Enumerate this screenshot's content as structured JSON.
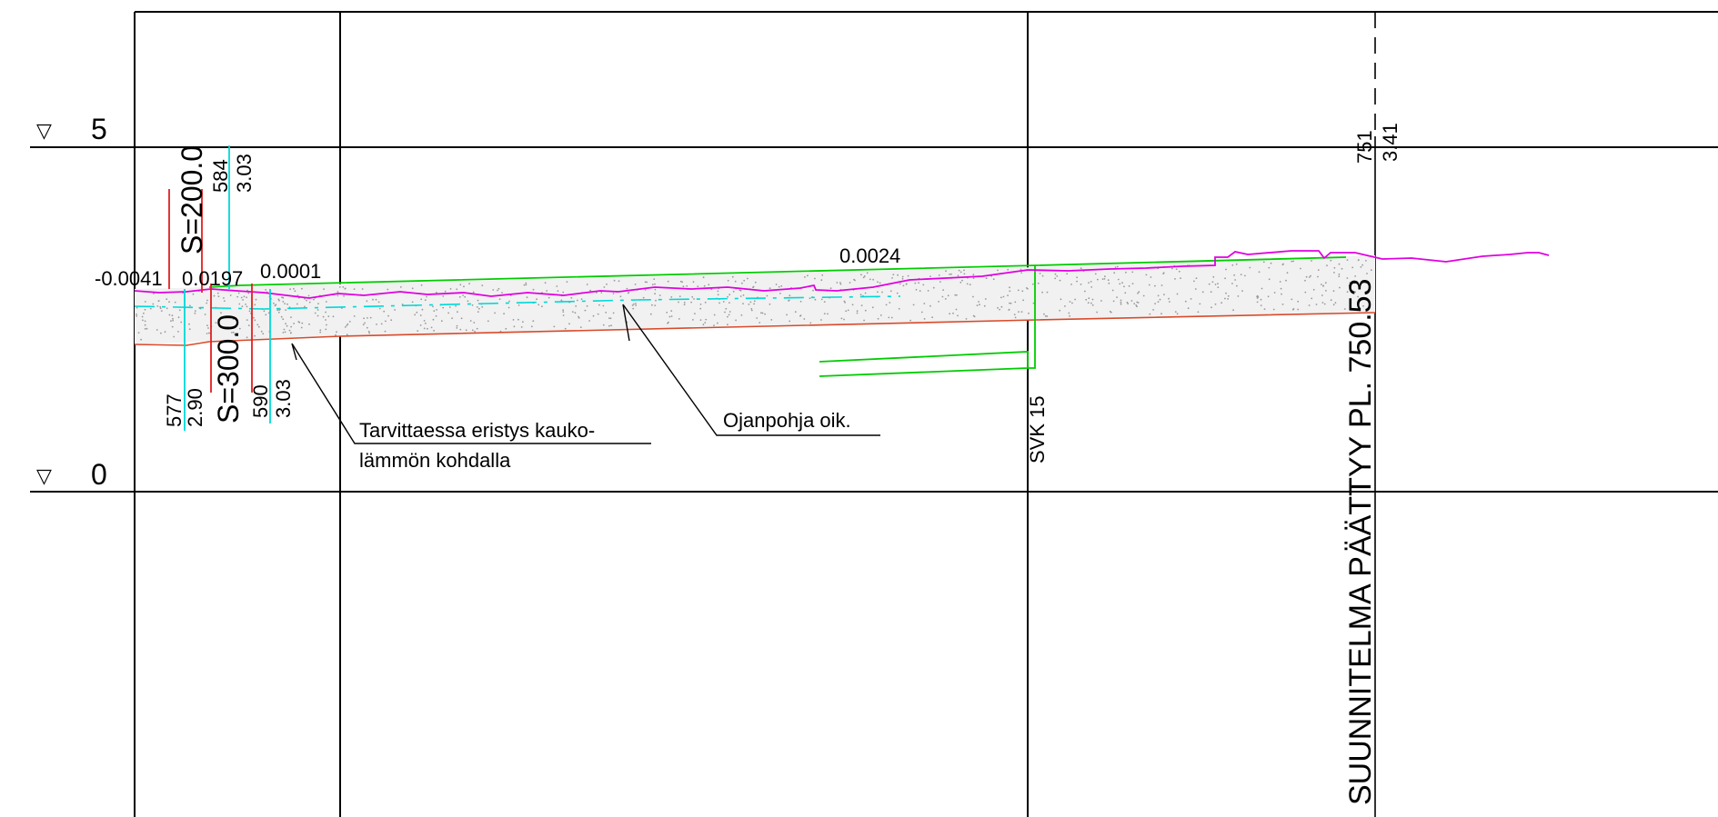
{
  "elevation_markers": [
    {
      "symbol": "▽",
      "value": "5"
    },
    {
      "symbol": "▽",
      "value": "0"
    }
  ],
  "slopes": {
    "s1": "-0.0041",
    "s2": "0.0197",
    "s3": "0.0001",
    "s4": "0.0024"
  },
  "structures": {
    "s200": "S=200.0",
    "s300": "S=300.0",
    "svk": "SVK 15"
  },
  "wells": [
    {
      "station": "577",
      "depth": "2.90"
    },
    {
      "station": "584",
      "depth": "3.03"
    },
    {
      "station": "590",
      "depth": "3.03"
    },
    {
      "station": "751",
      "depth": "3.41"
    }
  ],
  "annotations": {
    "insulation_line1": "Tarvittaessa eristys kauko-",
    "insulation_line2": "lämmön kohdalla",
    "ditch_bottom": "Ojanpohja oik."
  },
  "plan_end": "SUUNNITELMA PÄÄTTYY PL. 750.53",
  "colors": {
    "grid": "#000000",
    "ground_line": "#e000e0",
    "design_line": "#00d000",
    "water_line": "#00d8d8",
    "bottom_line": "#d94a2a",
    "structure_marks": "#e02020",
    "fill_dots": "#888888"
  }
}
